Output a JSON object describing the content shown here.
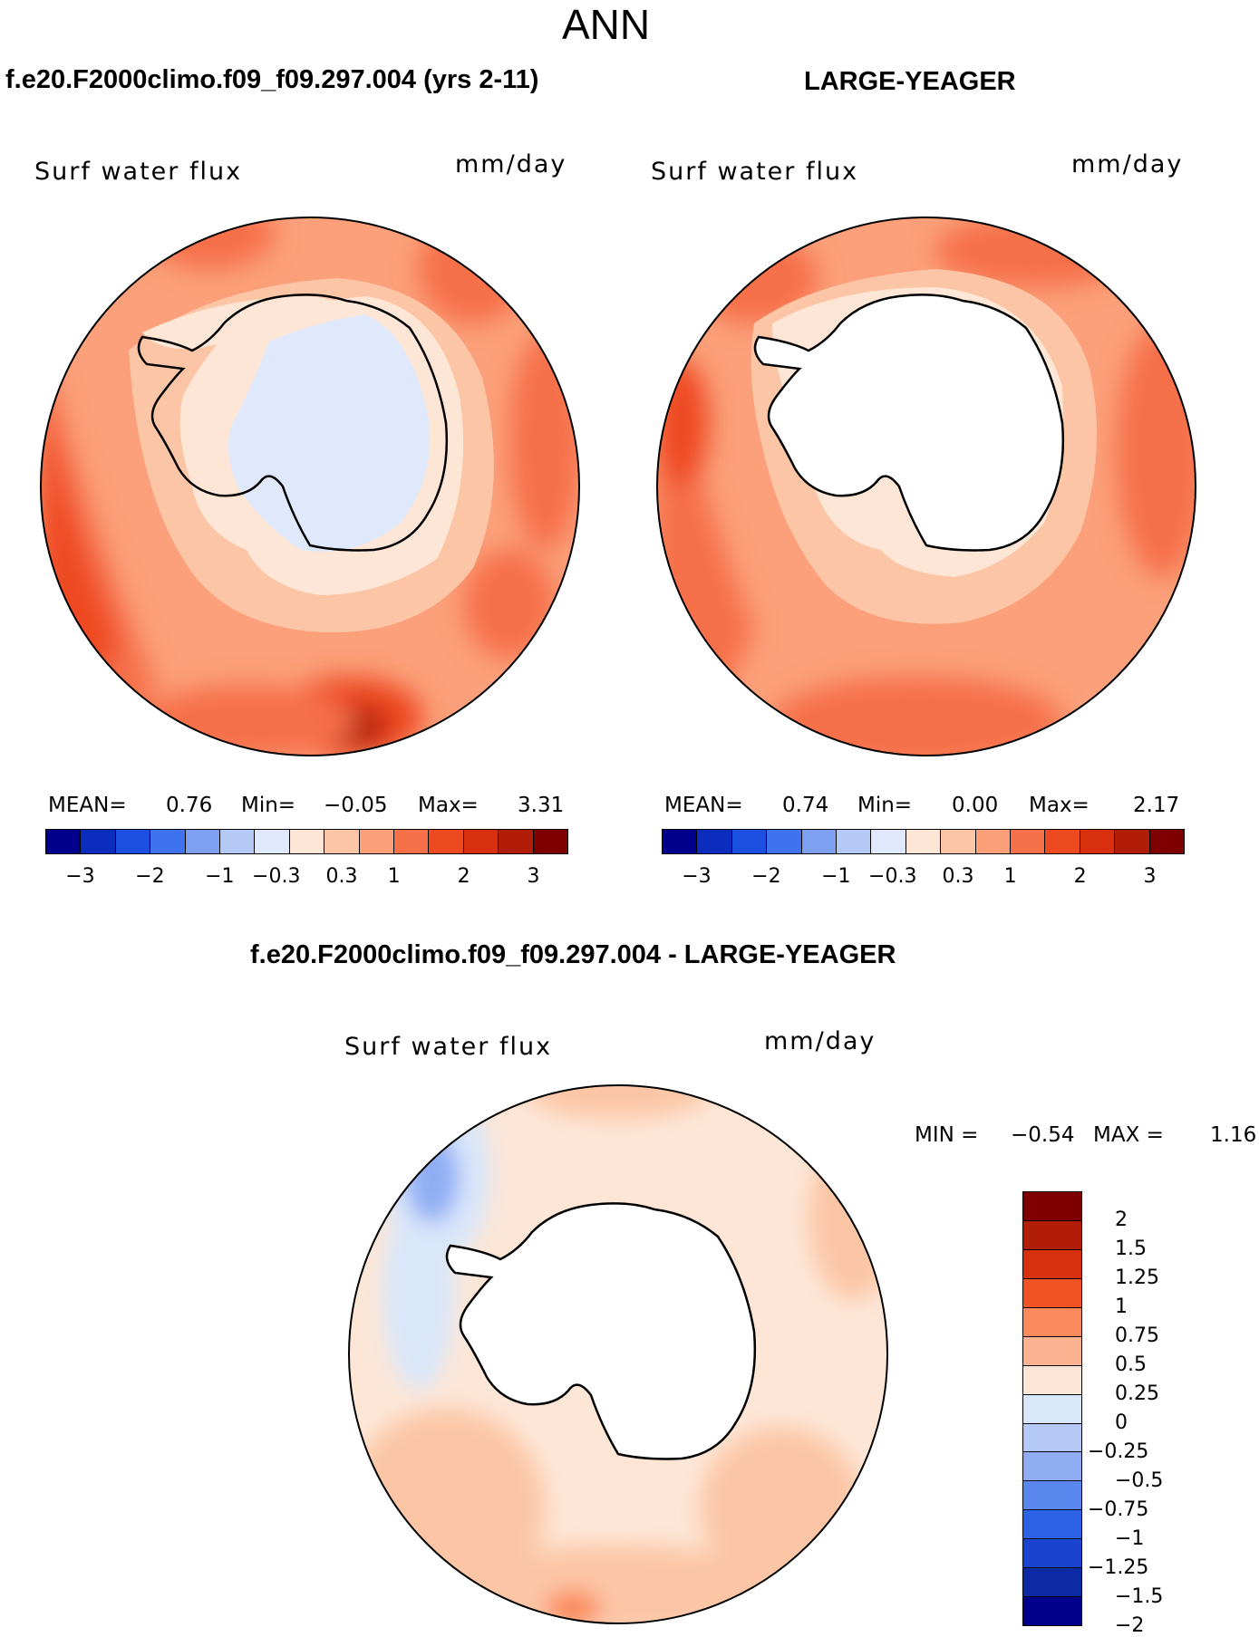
{
  "super_title": "ANN",
  "panels": [
    {
      "title": "f.e20.F2000climo.f09_f09.297.004 (yrs 2-11)",
      "left_label": "Surf water flux",
      "units": "mm/day",
      "stats": {
        "mean_label": "MEAN=",
        "mean": "0.76",
        "min_label": "Min=",
        "min": "−0.05",
        "max_label": "Max=",
        "max": "3.31"
      },
      "colorbar_ticks": [
        "−3",
        "−2",
        "−1",
        "−0.3",
        "0.3",
        "1",
        "2",
        "3"
      ]
    },
    {
      "title": "LARGE-YEAGER",
      "left_label": "Surf water flux",
      "units": "mm/day",
      "stats": {
        "mean_label": "MEAN=",
        "mean": "0.74",
        "min_label": "Min=",
        "min": "0.00",
        "max_label": "Max=",
        "max": "2.17"
      },
      "colorbar_ticks": [
        "−3",
        "−2",
        "−1",
        "−0.3",
        "0.3",
        "1",
        "2",
        "3"
      ]
    }
  ],
  "diff": {
    "title": "f.e20.F2000climo.f09_f09.297.004 - LARGE-YEAGER",
    "left_label": "Surf water flux",
    "units": "mm/day",
    "min_label": "MIN =",
    "min": "−0.54",
    "max_label": "MAX =",
    "max": "1.16",
    "colorbar_ticks": [
      "2",
      "1.5",
      "1.25",
      "1",
      "0.75",
      "0.5",
      "0.25",
      "0",
      "−0.25",
      "−0.5",
      "−0.75",
      "−1",
      "−1.25",
      "−1.5",
      "−2"
    ]
  },
  "colors": {
    "seq": [
      "#00008b",
      "#0a2dbe",
      "#1a4fe0",
      "#3e72ee",
      "#7ea0f2",
      "#b5c9f6",
      "#dfe9fb",
      "#fde6d6",
      "#fcc6a6",
      "#fba07a",
      "#f6704a",
      "#ee4a22",
      "#d8300e",
      "#b11d06",
      "#7f0000"
    ],
    "diff": [
      "#7f0000",
      "#b11d06",
      "#d8300e",
      "#f05424",
      "#fa8a5c",
      "#fcb392",
      "#fde6d6",
      "#d9e7fb",
      "#b5c9f6",
      "#90adf4",
      "#5a87ee",
      "#2e62e6",
      "#1a44cf",
      "#0b2aa3",
      "#00008b"
    ],
    "coast": "#000000"
  }
}
